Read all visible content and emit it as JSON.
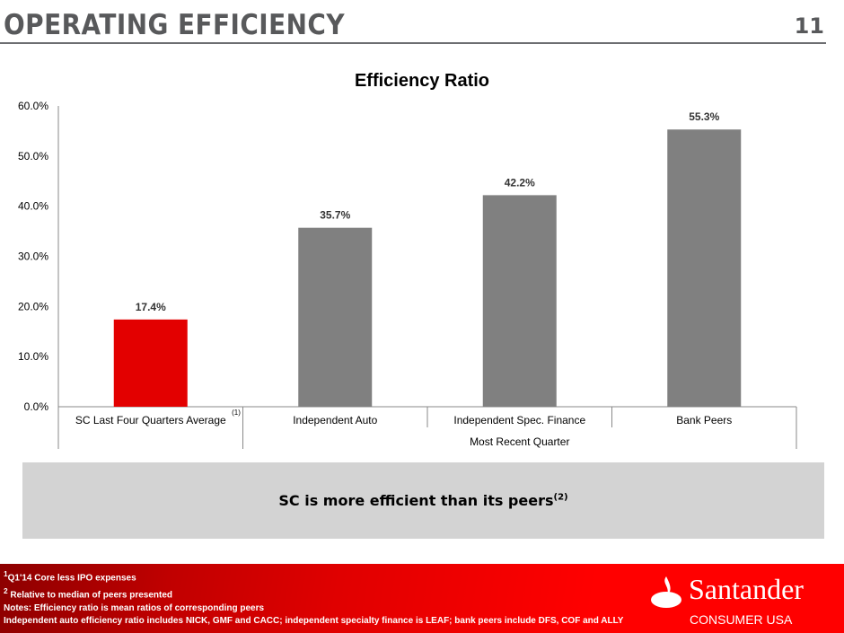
{
  "header": {
    "title": "OPERATING EFFICIENCY",
    "page_number": "11"
  },
  "chart_data": {
    "type": "bar",
    "title": "Efficiency Ratio",
    "categories": [
      "SC Last Four Quarters Average",
      "Independent Auto",
      "Independent Spec. Finance",
      "Bank Peers"
    ],
    "category_footnote": "(1)",
    "group_label": "Most Recent Quarter",
    "values": [
      17.4,
      35.7,
      42.2,
      55.3
    ],
    "data_labels": [
      "17.4%",
      "35.7%",
      "42.2%",
      "55.3%"
    ],
    "colors": [
      "#e30000",
      "#808080",
      "#808080",
      "#808080"
    ],
    "ylim": [
      0,
      60
    ],
    "yticks": [
      "0.0%",
      "10.0%",
      "20.0%",
      "30.0%",
      "40.0%",
      "50.0%",
      "60.0%"
    ],
    "xlabel": "",
    "ylabel": "",
    "grid": false
  },
  "callout": {
    "text": "SC is more efficient than its peers",
    "sup": "(2)"
  },
  "footer": {
    "notes": [
      {
        "sup": "1",
        "text": "Q1'14 Core less IPO expenses"
      },
      {
        "sup": "2",
        "text": "Relative to median of peers presented"
      },
      {
        "sup": "",
        "text": "Notes: Efficiency ratio is mean ratios of corresponding peers"
      },
      {
        "sup": "",
        "text": "Independent auto efficiency ratio includes NICK, GMF and CACC; independent specialty finance is LEAF; bank peers include DFS, COF and ALLY"
      }
    ],
    "logo_name": "Santander",
    "logo_sub": "CONSUMER USA"
  }
}
